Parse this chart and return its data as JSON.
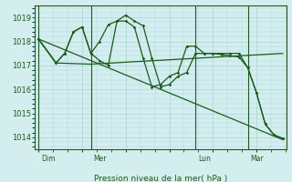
{
  "background_color": "#d4eef0",
  "grid_color": "#aad4d8",
  "line_color": "#1a5c1a",
  "ylabel": "Pression niveau de la mer( hPa )",
  "ylim": [
    1013.5,
    1019.5
  ],
  "yticks": [
    1014,
    1015,
    1016,
    1017,
    1018,
    1019
  ],
  "day_labels": [
    "Dim",
    "Mer",
    "Lun",
    "Mar"
  ],
  "day_positions": [
    0,
    3,
    9,
    12
  ],
  "xmin": -0.2,
  "xmax": 14.2,
  "seriesA": {
    "x": [
      0,
      14
    ],
    "y": [
      1018.1,
      1013.9
    ]
  },
  "seriesB": {
    "x": [
      0,
      1,
      3,
      14
    ],
    "y": [
      1018.1,
      1017.1,
      1017.05,
      1017.5
    ]
  },
  "seriesC": {
    "x": [
      0,
      1,
      1.5,
      2,
      2.5,
      3,
      3.5,
      4,
      4.5,
      5,
      5.5,
      6,
      6.5,
      7,
      7.5,
      8,
      8.5,
      9,
      9.5,
      10,
      10.5,
      11,
      11.5,
      12,
      12.5,
      13,
      13.5,
      14
    ],
    "y": [
      1018.1,
      1017.1,
      1017.5,
      1018.4,
      1018.6,
      1017.5,
      1018.0,
      1018.7,
      1018.85,
      1019.1,
      1018.85,
      1018.65,
      1017.3,
      1016.1,
      1016.2,
      1016.55,
      1016.7,
      1017.5,
      1017.5,
      1017.5,
      1017.5,
      1017.5,
      1017.5,
      1016.9,
      1015.85,
      1014.55,
      1014.1,
      1013.95
    ]
  },
  "seriesD": {
    "x": [
      0,
      1,
      1.5,
      2,
      2.5,
      3,
      3.5,
      4,
      4.5,
      5,
      5.5,
      6,
      6.5,
      7,
      7.5,
      8,
      8.5,
      9,
      9.5,
      10,
      10.5,
      11,
      11.5,
      12,
      12.5,
      13,
      13.5,
      14
    ],
    "y": [
      1018.1,
      1017.1,
      1017.5,
      1018.4,
      1018.6,
      1017.5,
      1017.2,
      1017.0,
      1018.85,
      1018.85,
      1018.6,
      1017.3,
      1016.1,
      1016.2,
      1016.55,
      1016.7,
      1017.8,
      1017.8,
      1017.5,
      1017.5,
      1017.45,
      1017.4,
      1017.35,
      1016.9,
      1015.85,
      1014.55,
      1014.1,
      1013.95
    ]
  }
}
